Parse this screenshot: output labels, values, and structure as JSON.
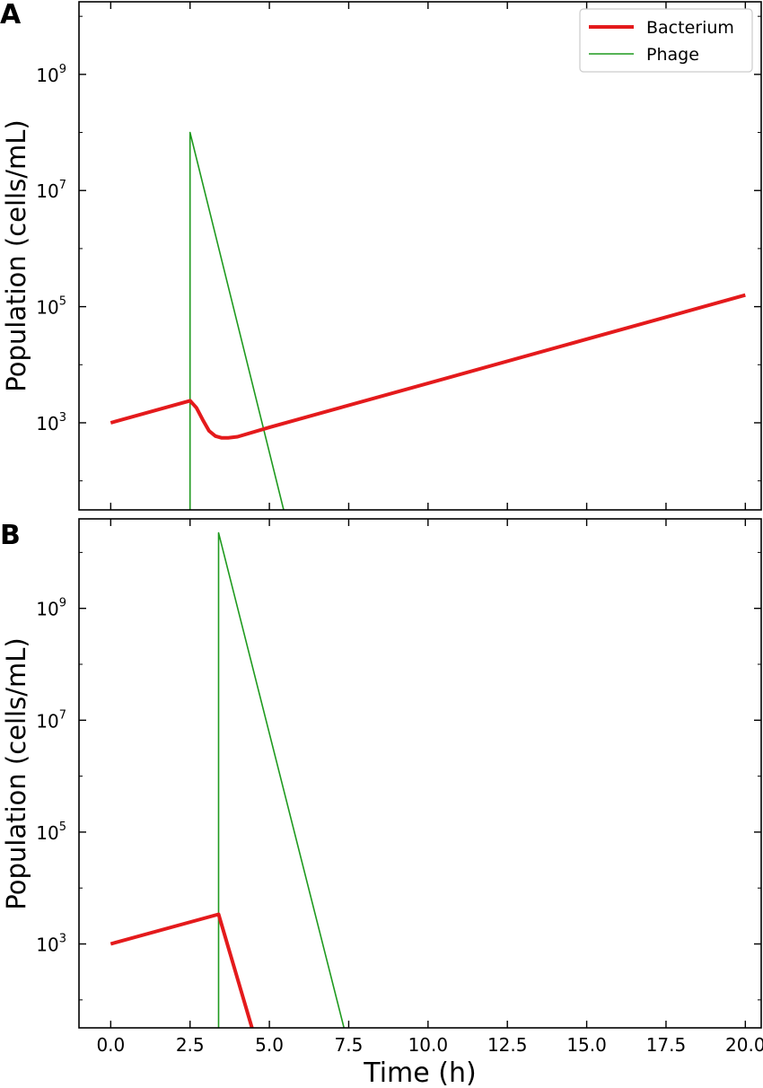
{
  "figure": {
    "xlabel": "Time (h)",
    "xticks": [
      "0.0",
      "2.5",
      "5.0",
      "7.5",
      "10.0",
      "12.5",
      "15.0",
      "17.5",
      "20.0"
    ]
  },
  "colors": {
    "bacterium": "#e41a1c",
    "phage": "#1f9a1f",
    "axes": "#000000"
  },
  "chart_data": [
    {
      "type": "line",
      "panel_label": "A",
      "ylabel": "Population (cells/mL)",
      "yscale": "log",
      "xlim": [
        -1.0,
        20.5
      ],
      "ylim_log10": [
        1.5,
        10.25
      ],
      "yticks": [
        {
          "base": "10",
          "exp": "3"
        },
        {
          "base": "10",
          "exp": "5"
        },
        {
          "base": "10",
          "exp": "7"
        },
        {
          "base": "10",
          "exp": "9"
        }
      ],
      "legend": {
        "position": "top-right"
      },
      "series": [
        {
          "name": "Bacterium",
          "color": "#e41a1c",
          "width": 4,
          "x": [
            0,
            2.5,
            2.7,
            2.9,
            3.1,
            3.3,
            3.5,
            3.7,
            4.0,
            5.0,
            20.0
          ],
          "y_log10": [
            3.0,
            3.38,
            3.26,
            3.05,
            2.86,
            2.77,
            2.74,
            2.74,
            2.76,
            2.92,
            5.2
          ]
        },
        {
          "name": "Phage",
          "color": "#1f9a1f",
          "width": 1.6,
          "x": [
            2.5,
            2.5,
            5.45
          ],
          "y_log10": [
            1.5,
            8.0,
            1.5
          ]
        }
      ]
    },
    {
      "type": "line",
      "panel_label": "B",
      "ylabel": "Population (cells/mL)",
      "yscale": "log",
      "xlim": [
        -1.0,
        20.5
      ],
      "ylim_log10": [
        1.5,
        10.6
      ],
      "yticks": [
        {
          "base": "10",
          "exp": "3"
        },
        {
          "base": "10",
          "exp": "5"
        },
        {
          "base": "10",
          "exp": "7"
        },
        {
          "base": "10",
          "exp": "9"
        }
      ],
      "series": [
        {
          "name": "Bacterium",
          "color": "#e41a1c",
          "width": 4,
          "x": [
            0,
            3.4,
            4.45
          ],
          "y_log10": [
            3.0,
            3.53,
            1.5
          ]
        },
        {
          "name": "Phage",
          "color": "#1f9a1f",
          "width": 1.6,
          "x": [
            3.4,
            3.4,
            7.35
          ],
          "y_log10": [
            1.5,
            10.35,
            1.5
          ]
        }
      ]
    }
  ]
}
